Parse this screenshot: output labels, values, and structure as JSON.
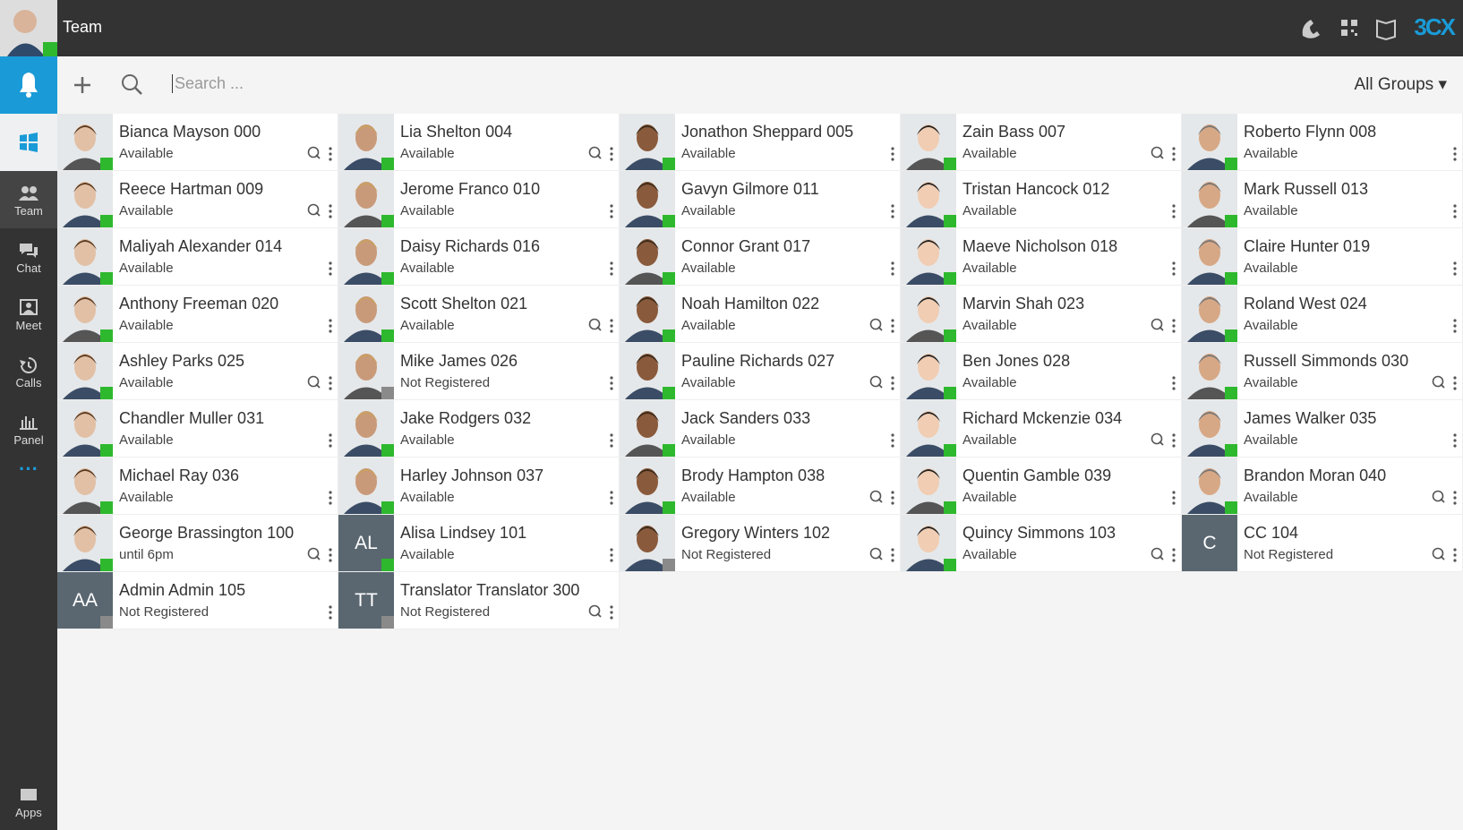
{
  "header": {
    "title": "Team",
    "logo": "3CX"
  },
  "toolbar": {
    "search_placeholder": "Search ...",
    "groups": "All Groups"
  },
  "nav": [
    "Team",
    "Chat",
    "Meet",
    "Calls",
    "Panel"
  ],
  "apps": "Apps",
  "contacts": [
    {
      "name": "Bianca Mayson 000",
      "status": "Available",
      "queue": true,
      "indicator": "#2eb82e"
    },
    {
      "name": "Lia Shelton 004",
      "status": "Available",
      "queue": true,
      "indicator": "#2eb82e"
    },
    {
      "name": "Jonathon Sheppard 005",
      "status": "Available",
      "queue": false,
      "indicator": "#2eb82e"
    },
    {
      "name": "Zain Bass 007",
      "status": "Available",
      "queue": true,
      "indicator": "#2eb82e"
    },
    {
      "name": "Roberto Flynn 008",
      "status": "Available",
      "queue": false,
      "indicator": "#2eb82e"
    },
    {
      "name": "Reece Hartman 009",
      "status": "Available",
      "queue": true,
      "indicator": "#2eb82e"
    },
    {
      "name": "Jerome Franco 010",
      "status": "Available",
      "queue": false,
      "indicator": "#2eb82e"
    },
    {
      "name": "Gavyn Gilmore 011",
      "status": "Available",
      "queue": false,
      "indicator": "#2eb82e"
    },
    {
      "name": "Tristan Hancock 012",
      "status": "Available",
      "queue": false,
      "indicator": "#2eb82e"
    },
    {
      "name": "Mark Russell 013",
      "status": "Available",
      "queue": false,
      "indicator": "#2eb82e"
    },
    {
      "name": "Maliyah Alexander 014",
      "status": "Available",
      "queue": false,
      "indicator": "#2eb82e"
    },
    {
      "name": "Daisy Richards 016",
      "status": "Available",
      "queue": false,
      "indicator": "#2eb82e"
    },
    {
      "name": "Connor Grant 017",
      "status": "Available",
      "queue": false,
      "indicator": "#2eb82e"
    },
    {
      "name": "Maeve Nicholson 018",
      "status": "Available",
      "queue": false,
      "indicator": "#2eb82e"
    },
    {
      "name": "Claire Hunter 019",
      "status": "Available",
      "queue": false,
      "indicator": "#2eb82e"
    },
    {
      "name": "Anthony Freeman 020",
      "status": "Available",
      "queue": false,
      "indicator": "#2eb82e"
    },
    {
      "name": "Scott Shelton 021",
      "status": "Available",
      "queue": true,
      "indicator": "#2eb82e"
    },
    {
      "name": "Noah Hamilton 022",
      "status": "Available",
      "queue": true,
      "indicator": "#2eb82e"
    },
    {
      "name": "Marvin Shah 023",
      "status": "Available",
      "queue": true,
      "indicator": "#2eb82e"
    },
    {
      "name": "Roland West 024",
      "status": "Available",
      "queue": false,
      "indicator": "#2eb82e"
    },
    {
      "name": "Ashley Parks 025",
      "status": "Available",
      "queue": true,
      "indicator": "#2eb82e"
    },
    {
      "name": "Mike James 026",
      "status": "Not Registered",
      "queue": false,
      "indicator": "#8a8a8a"
    },
    {
      "name": "Pauline Richards 027",
      "status": "Available",
      "queue": true,
      "indicator": "#2eb82e"
    },
    {
      "name": "Ben Jones 028",
      "status": "Available",
      "queue": false,
      "indicator": "#2eb82e"
    },
    {
      "name": "Russell Simmonds 030",
      "status": "Available",
      "queue": true,
      "indicator": "#2eb82e"
    },
    {
      "name": "Chandler Muller 031",
      "status": "Available",
      "queue": false,
      "indicator": "#2eb82e"
    },
    {
      "name": "Jake Rodgers 032",
      "status": "Available",
      "queue": false,
      "indicator": "#2eb82e"
    },
    {
      "name": "Jack Sanders 033",
      "status": "Available",
      "queue": false,
      "indicator": "#2eb82e"
    },
    {
      "name": "Richard Mckenzie 034",
      "status": "Available",
      "queue": true,
      "indicator": "#2eb82e"
    },
    {
      "name": "James Walker 035",
      "status": "Available",
      "queue": false,
      "indicator": "#2eb82e"
    },
    {
      "name": "Michael Ray 036",
      "status": "Available",
      "queue": false,
      "indicator": "#2eb82e"
    },
    {
      "name": "Harley Johnson 037",
      "status": "Available",
      "queue": false,
      "indicator": "#2eb82e"
    },
    {
      "name": "Brody Hampton 038",
      "status": "Available",
      "queue": true,
      "indicator": "#2eb82e"
    },
    {
      "name": "Quentin Gamble 039",
      "status": "Available",
      "queue": false,
      "indicator": "#2eb82e"
    },
    {
      "name": "Brandon Moran 040",
      "status": "Available",
      "queue": true,
      "indicator": "#2eb82e"
    },
    {
      "name": "George Brassington 100",
      "status": "until 6pm",
      "queue": true,
      "indicator": "#2eb82e"
    },
    {
      "name": "Alisa Lindsey 101",
      "status": "Available",
      "initials": "AL",
      "queue": false,
      "indicator": "#2eb82e"
    },
    {
      "name": "Gregory Winters 102",
      "status": "Not Registered",
      "queue": true,
      "indicator": "#8a8a8a"
    },
    {
      "name": "Quincy Simmons 103",
      "status": "Available",
      "queue": true,
      "indicator": "#2eb82e"
    },
    {
      "name": "CC 104",
      "status": "Not Registered",
      "initials": "C",
      "queue": true
    },
    {
      "name": "Admin Admin 105",
      "status": "Not Registered",
      "initials": "AA",
      "queue": false,
      "indicator": "#8a8a8a"
    },
    {
      "name": "Translator Translator 300",
      "status": "Not Registered",
      "initials": "TT",
      "queue": true,
      "indicator": "#8a8a8a"
    }
  ]
}
